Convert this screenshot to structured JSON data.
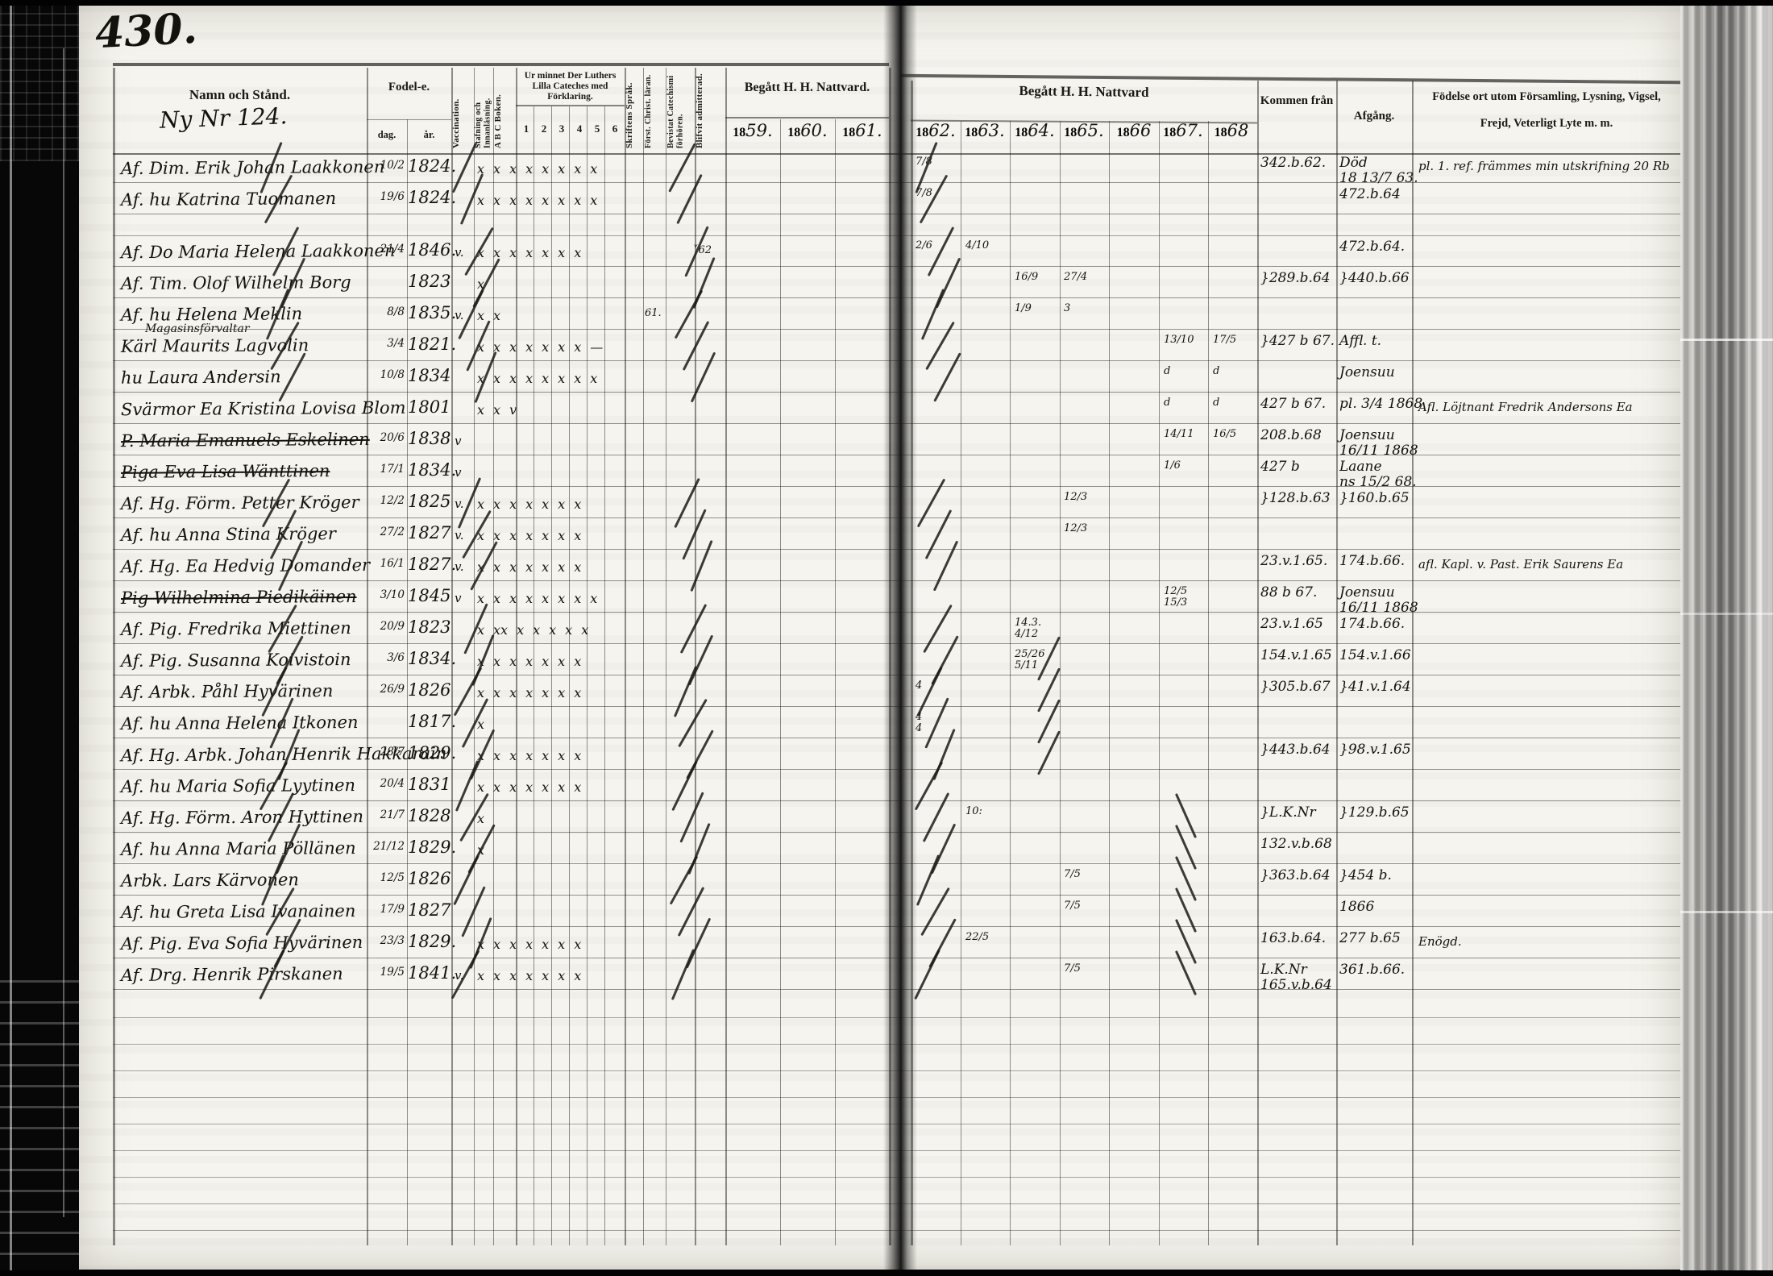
{
  "page": {
    "number": "430.",
    "margin_note": "Ny Nr 124.",
    "ink_color": "#14120d",
    "paper_color": "#f5f4ee"
  },
  "header": {
    "name": "Namn och Stånd.",
    "birth": "Fodel-e.",
    "birth_day": "dag.",
    "birth_year": "år.",
    "vaccination": "Vaccination.",
    "spelling": "Stafning och Innanläsning.",
    "abc": "A B C Boken.",
    "catechism": "Ur minnet Der Luthers Lilla Cateches med Förklaring.",
    "catechism_cols": [
      "1",
      "2",
      "3",
      "4",
      "5",
      "6"
    ],
    "scripture": "Skriftens Språk.",
    "christianity": "Först. Christ. läran.",
    "attended": "Bevistat Catechismi förhören.",
    "admitted": "Blifvit admitterad.",
    "communion_left": "Begått H. H. Nattvard.",
    "communion_right": "Begått H. H. Nattvard",
    "years_left": [
      "1859.",
      "1860.",
      "1861."
    ],
    "years_right": [
      "1862.",
      "1863.",
      "1864.",
      "1865.",
      "1866",
      "1867.",
      "1868"
    ],
    "from": "Kommen från",
    "departure": "Afgång.",
    "notes": "Födelse ort utom Församling, Lysning, Vigsel, Frejd, Veterligt Lyte m. m."
  },
  "rows": [
    {
      "name": "Af. Dim. Erik Johan Laakkonen",
      "bday": "10/2",
      "byear": "1824.",
      "marks": "x x x x x x x x",
      "natt": {
        "62": "7/8"
      },
      "kommen": "342.b.62.",
      "afgang": "Död\n18 13/7 63.",
      "note": "pl. 1. ref. främmes min utskrifning 20 Rb",
      "flourish": true
    },
    {
      "name": "Af. hu Katrina Tuomanen",
      "bday": "19/6",
      "byear": "1824.",
      "marks": "x x x x x x x x",
      "natt": {
        "62": "7/8"
      },
      "afgang": "472.b.64",
      "flourish": true
    },
    {
      "name": "Af. Do Maria Helena Laakkonen",
      "bday": "21/4",
      "byear": "1846.",
      "vacc": "v.",
      "marks": "x x x x x x x",
      "adm": "˅62",
      "natt": {
        "62": "2/6",
        "63": "4/10"
      },
      "afgang": "472.b.64.",
      "flourish": true
    },
    {
      "name": "Af. Tim. Olof Wilhelm Borg",
      "byear": "1823",
      "marks": "x",
      "natt": {
        "64": "16/9",
        "65": "27/4"
      },
      "kommen": "}289.b.64",
      "afgang": "}440.b.66",
      "flourish": true
    },
    {
      "name": "Af. hu Helena Meklin",
      "bday": "8/8",
      "byear": "1835.",
      "vacc": "v.",
      "marks": "x x",
      "chr": "61.",
      "natt": {
        "64": "1/9",
        "65": "3"
      },
      "flourish": true
    },
    {
      "name": "Kärl Maurits Lagvolin",
      "ann": "Magasinsförvaltar",
      "bday": "3/4",
      "byear": "1821.",
      "marks": "x x x x x x x —",
      "natt": {
        "67": "13/10",
        "68": "17/5"
      },
      "kommen": "}427 b 67.",
      "afgang": "Affl. t.",
      "flourish": true
    },
    {
      "name": "hu Laura Andersin",
      "bday": "10/8",
      "byear": "1834",
      "marks": "x x x x x x x x",
      "natt": {
        "67": "d",
        "68": "d"
      },
      "afgang": "Joensuu",
      "flourish": true
    },
    {
      "name": "Svärmor Ea Kristina Lovisa Blom",
      "byear": "1801",
      "marks": "x x v",
      "natt": {
        "67": "d",
        "68": "d"
      },
      "kommen": "427 b 67.",
      "afgang": "pl. 3/4 1868",
      "note": "Afl. Löjtnant Fredrik Andersons Ea",
      "flourish": false
    },
    {
      "name": "P. Maria Emanuels Eskelinen",
      "bday": "20/6",
      "byear": "1838",
      "vacc": "v",
      "struck": true,
      "natt": {
        "67": "14/11",
        "68": "16/5"
      },
      "kommen": "208.b.68",
      "afgang": "Joensuu\n16/11 1868",
      "flourish": false
    },
    {
      "name": "Piga Eva Lisa Wänttinen",
      "bday": "17/1",
      "byear": "1834.",
      "vacc": "v",
      "struck": true,
      "natt": {
        "67": "1/6"
      },
      "kommen": "427 b",
      "afgang": "Laane\nns 15/2 68.",
      "flourish": false
    },
    {
      "name": "Af. Hg. Förm. Petter Kröger",
      "bday": "12/2",
      "byear": "1825",
      "vacc": "v.",
      "marks": "x x x x x x x",
      "natt": {
        "65": "12/3"
      },
      "kommen": "}128.b.63",
      "afgang": "}160.b.65",
      "flourish": true
    },
    {
      "name": "Af. hu Anna Stina Kröger",
      "bday": "27/2",
      "byear": "1827",
      "vacc": "v.",
      "marks": "x x x x x x x",
      "natt": {
        "65": "12/3"
      },
      "flourish": true
    },
    {
      "name": "Af. Hg. Ea Hedvig Domander",
      "bday": "16/1",
      "byear": "1827.",
      "vacc": "v.",
      "marks": "x x x x x x x",
      "kommen": "23.v.1.65.",
      "afgang": "174.b.66.",
      "note": "afl. Kapl. v. Past. Erik Saurens Ea",
      "flourish": true
    },
    {
      "name": "Pig Wilhelmina Piedikäinen",
      "bday": "3/10",
      "byear": "1845",
      "vacc": "v",
      "struck": true,
      "marks": "x x x x x x x x",
      "natt": {
        "67": "12/5\n15/3"
      },
      "kommen": "88 b 67.",
      "afgang": "Joensuu\n16/11 1868",
      "flourish": false
    },
    {
      "name": "Af. Pig. Fredrika Miettinen",
      "bday": "20/9",
      "byear": "1823",
      "marks": "x xx x x x x x",
      "natt": {
        "64": "14.3.\n4/12"
      },
      "kommen": "23.v.1.65",
      "afgang": "174.b.66.",
      "flourish": true
    },
    {
      "name": "Af. Pig. Susanna Koivistoin",
      "bday": "3/6",
      "byear": "1834.",
      "marks": "x x x x x x x",
      "natt": {
        "64": "25/26\n5/11"
      },
      "kommen": "154.v.1.65",
      "afgang": "154.v.1.66",
      "flourish": true
    },
    {
      "name": "Af. Arbk. Påhl Hyvärinen",
      "bday": "26/9",
      "byear": "1826",
      "marks": "x x x x x x x",
      "natt": {
        "62": "4"
      },
      "kommen": "}305.b.67",
      "afgang": "}41.v.1.64",
      "flourish": true
    },
    {
      "name": "Af. hu Anna Helena Itkonen",
      "byear": "1817.",
      "marks": "x",
      "natt": {
        "62": "4\n4"
      },
      "flourish": true
    },
    {
      "name": "Af. Hg. Arbk. Johan Henrik Hakkarain",
      "bday": "28/7",
      "byear": "1829.",
      "marks": "x x x x x x x",
      "kommen": "}443.b.64",
      "afgang": "}98.v.1.65",
      "flourish": true
    },
    {
      "name": "Af. hu Maria Sofia Lyytinen",
      "bday": "20/4",
      "byear": "1831",
      "marks": "x x x x x x x",
      "flourish": true
    },
    {
      "name": "Af. Hg. Förm. Aron Hyttinen",
      "bday": "21/7",
      "byear": "1828",
      "marks": "x",
      "natt": {
        "63": "10:"
      },
      "kommen": "}L.K.Nr",
      "afgang": "}129.b.65",
      "flourish": true
    },
    {
      "name": "Af. hu Anna Maria Pöllänen",
      "bday": "21/12",
      "byear": "1829.",
      "marks": "x",
      "kommen": "132.v.b.68",
      "flourish": true
    },
    {
      "name": "Arbk. Lars Kärvonen",
      "bday": "12/5",
      "byear": "1826",
      "natt": {
        "65": "7/5"
      },
      "kommen": "}363.b.64",
      "afgang": "}454 b.",
      "flourish": true
    },
    {
      "name": "Af. hu Greta Lisa Ivanainen",
      "bday": "17/9",
      "byear": "1827",
      "natt": {
        "65": "7/5"
      },
      "afgang": "1866",
      "flourish": true
    },
    {
      "name": "Af. Pig. Eva Sofia Hyvärinen",
      "bday": "23/3",
      "byear": "1829.",
      "marks": "x x x x x x x",
      "natt": {
        "63": "22/5"
      },
      "kommen": "163.b.64.",
      "afgang": "277 b.65",
      "note": "Enögd.",
      "flourish": true
    },
    {
      "name": "Af. Drg. Henrik Pirskanen",
      "bday": "19/5",
      "byear": "1841.",
      "vacc": "v.",
      "marks": "x x x x x x x",
      "natt": {
        "65": "7/5"
      },
      "kommen": "L.K.Nr\n165.v.b.64",
      "afgang": "361.b.66.",
      "flourish": true
    }
  ]
}
